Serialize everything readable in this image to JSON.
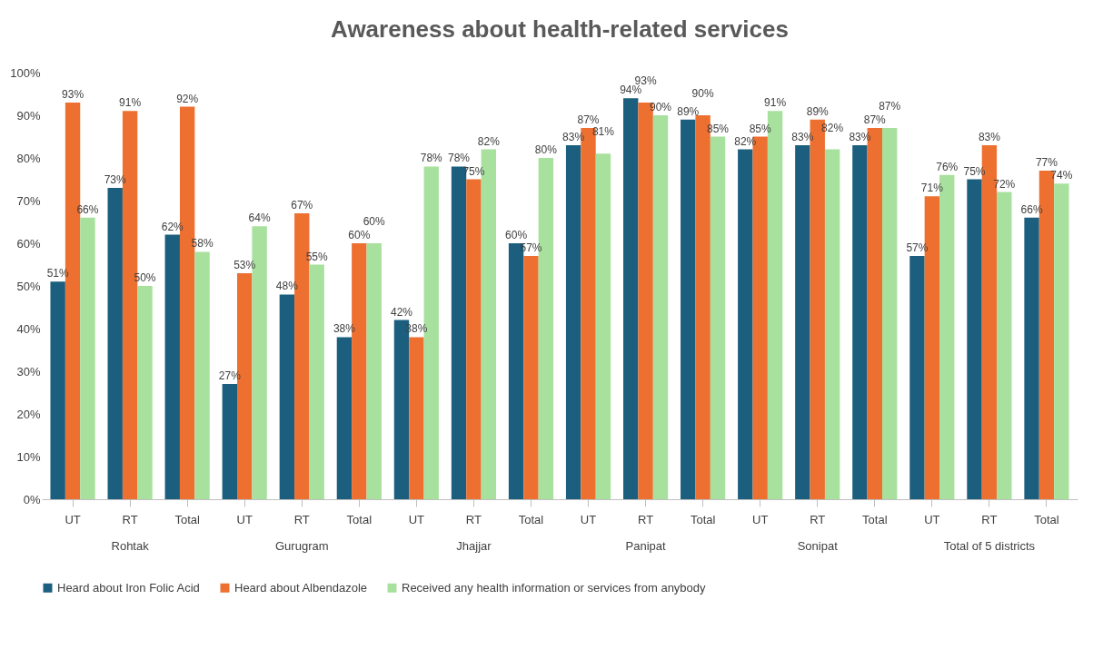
{
  "chart_data": {
    "type": "bar",
    "title": "Awareness about health-related services",
    "categories": [
      "UT",
      "RT",
      "Total",
      "UT",
      "RT",
      "Total",
      "UT",
      "RT",
      "Total",
      "UT",
      "RT",
      "Total",
      "UT",
      "RT",
      "Total",
      "UT",
      "RT",
      "Total"
    ],
    "annotations": [
      "Rohtak",
      "Gurugram",
      "Jhajjar",
      "Panipat",
      "Sonipat",
      "Total of 5 districts"
    ],
    "series": [
      {
        "name": "Heard about Iron Folic Acid",
        "color": "#1b5e7e",
        "values": [
          51,
          73,
          62,
          27,
          48,
          38,
          42,
          78,
          60,
          83,
          94,
          89,
          82,
          83,
          83,
          57,
          75,
          66
        ],
        "value_labels": [
          "51%",
          "73%",
          "62%",
          "27%",
          "48%",
          "38%",
          "42%",
          "78%",
          "60%",
          "83%",
          "94%",
          "89%",
          "82%",
          "83%",
          "83%",
          "57%",
          "75%",
          "66%"
        ]
      },
      {
        "name": "Heard about Albendazole",
        "color": "#ed7031",
        "values": [
          93,
          91,
          92,
          53,
          67,
          60,
          38,
          75,
          57,
          87,
          93,
          90,
          85,
          89,
          87,
          71,
          83,
          77
        ],
        "value_labels": [
          "93%",
          "91%",
          "92%",
          "53%",
          "67%",
          "60%",
          "38%",
          "75%",
          "57%",
          "87%",
          "93%",
          "90%",
          "85%",
          "89%",
          "87%",
          "71%",
          "83%",
          "77%"
        ]
      },
      {
        "name": "Received any health information or services from anybody",
        "color": "#a8e09e",
        "values": [
          66,
          50,
          58,
          64,
          55,
          60,
          78,
          82,
          80,
          81,
          90,
          85,
          91,
          82,
          87,
          76,
          72,
          74
        ],
        "value_labels": [
          "66%",
          "50%",
          "58%",
          "64%",
          "55%",
          "60%",
          "78%",
          "82%",
          "80%",
          "81%",
          "90%",
          "85%",
          "91%",
          "82%",
          "87%",
          "76%",
          "72%",
          "74%"
        ]
      }
    ],
    "ylim": [
      0,
      100
    ],
    "yticks": [
      {
        "value": 0,
        "label": "0%"
      },
      {
        "value": 10,
        "label": "10%"
      },
      {
        "value": 20,
        "label": "20%"
      },
      {
        "value": 30,
        "label": "30%"
      },
      {
        "value": 40,
        "label": "40%"
      },
      {
        "value": 50,
        "label": "50%"
      },
      {
        "value": 60,
        "label": "60%"
      },
      {
        "value": 70,
        "label": "70%"
      },
      {
        "value": 80,
        "label": "80%"
      },
      {
        "value": 90,
        "label": "90%"
      },
      {
        "value": 100,
        "label": "100%"
      }
    ],
    "grid": false,
    "legend": "bottom"
  }
}
